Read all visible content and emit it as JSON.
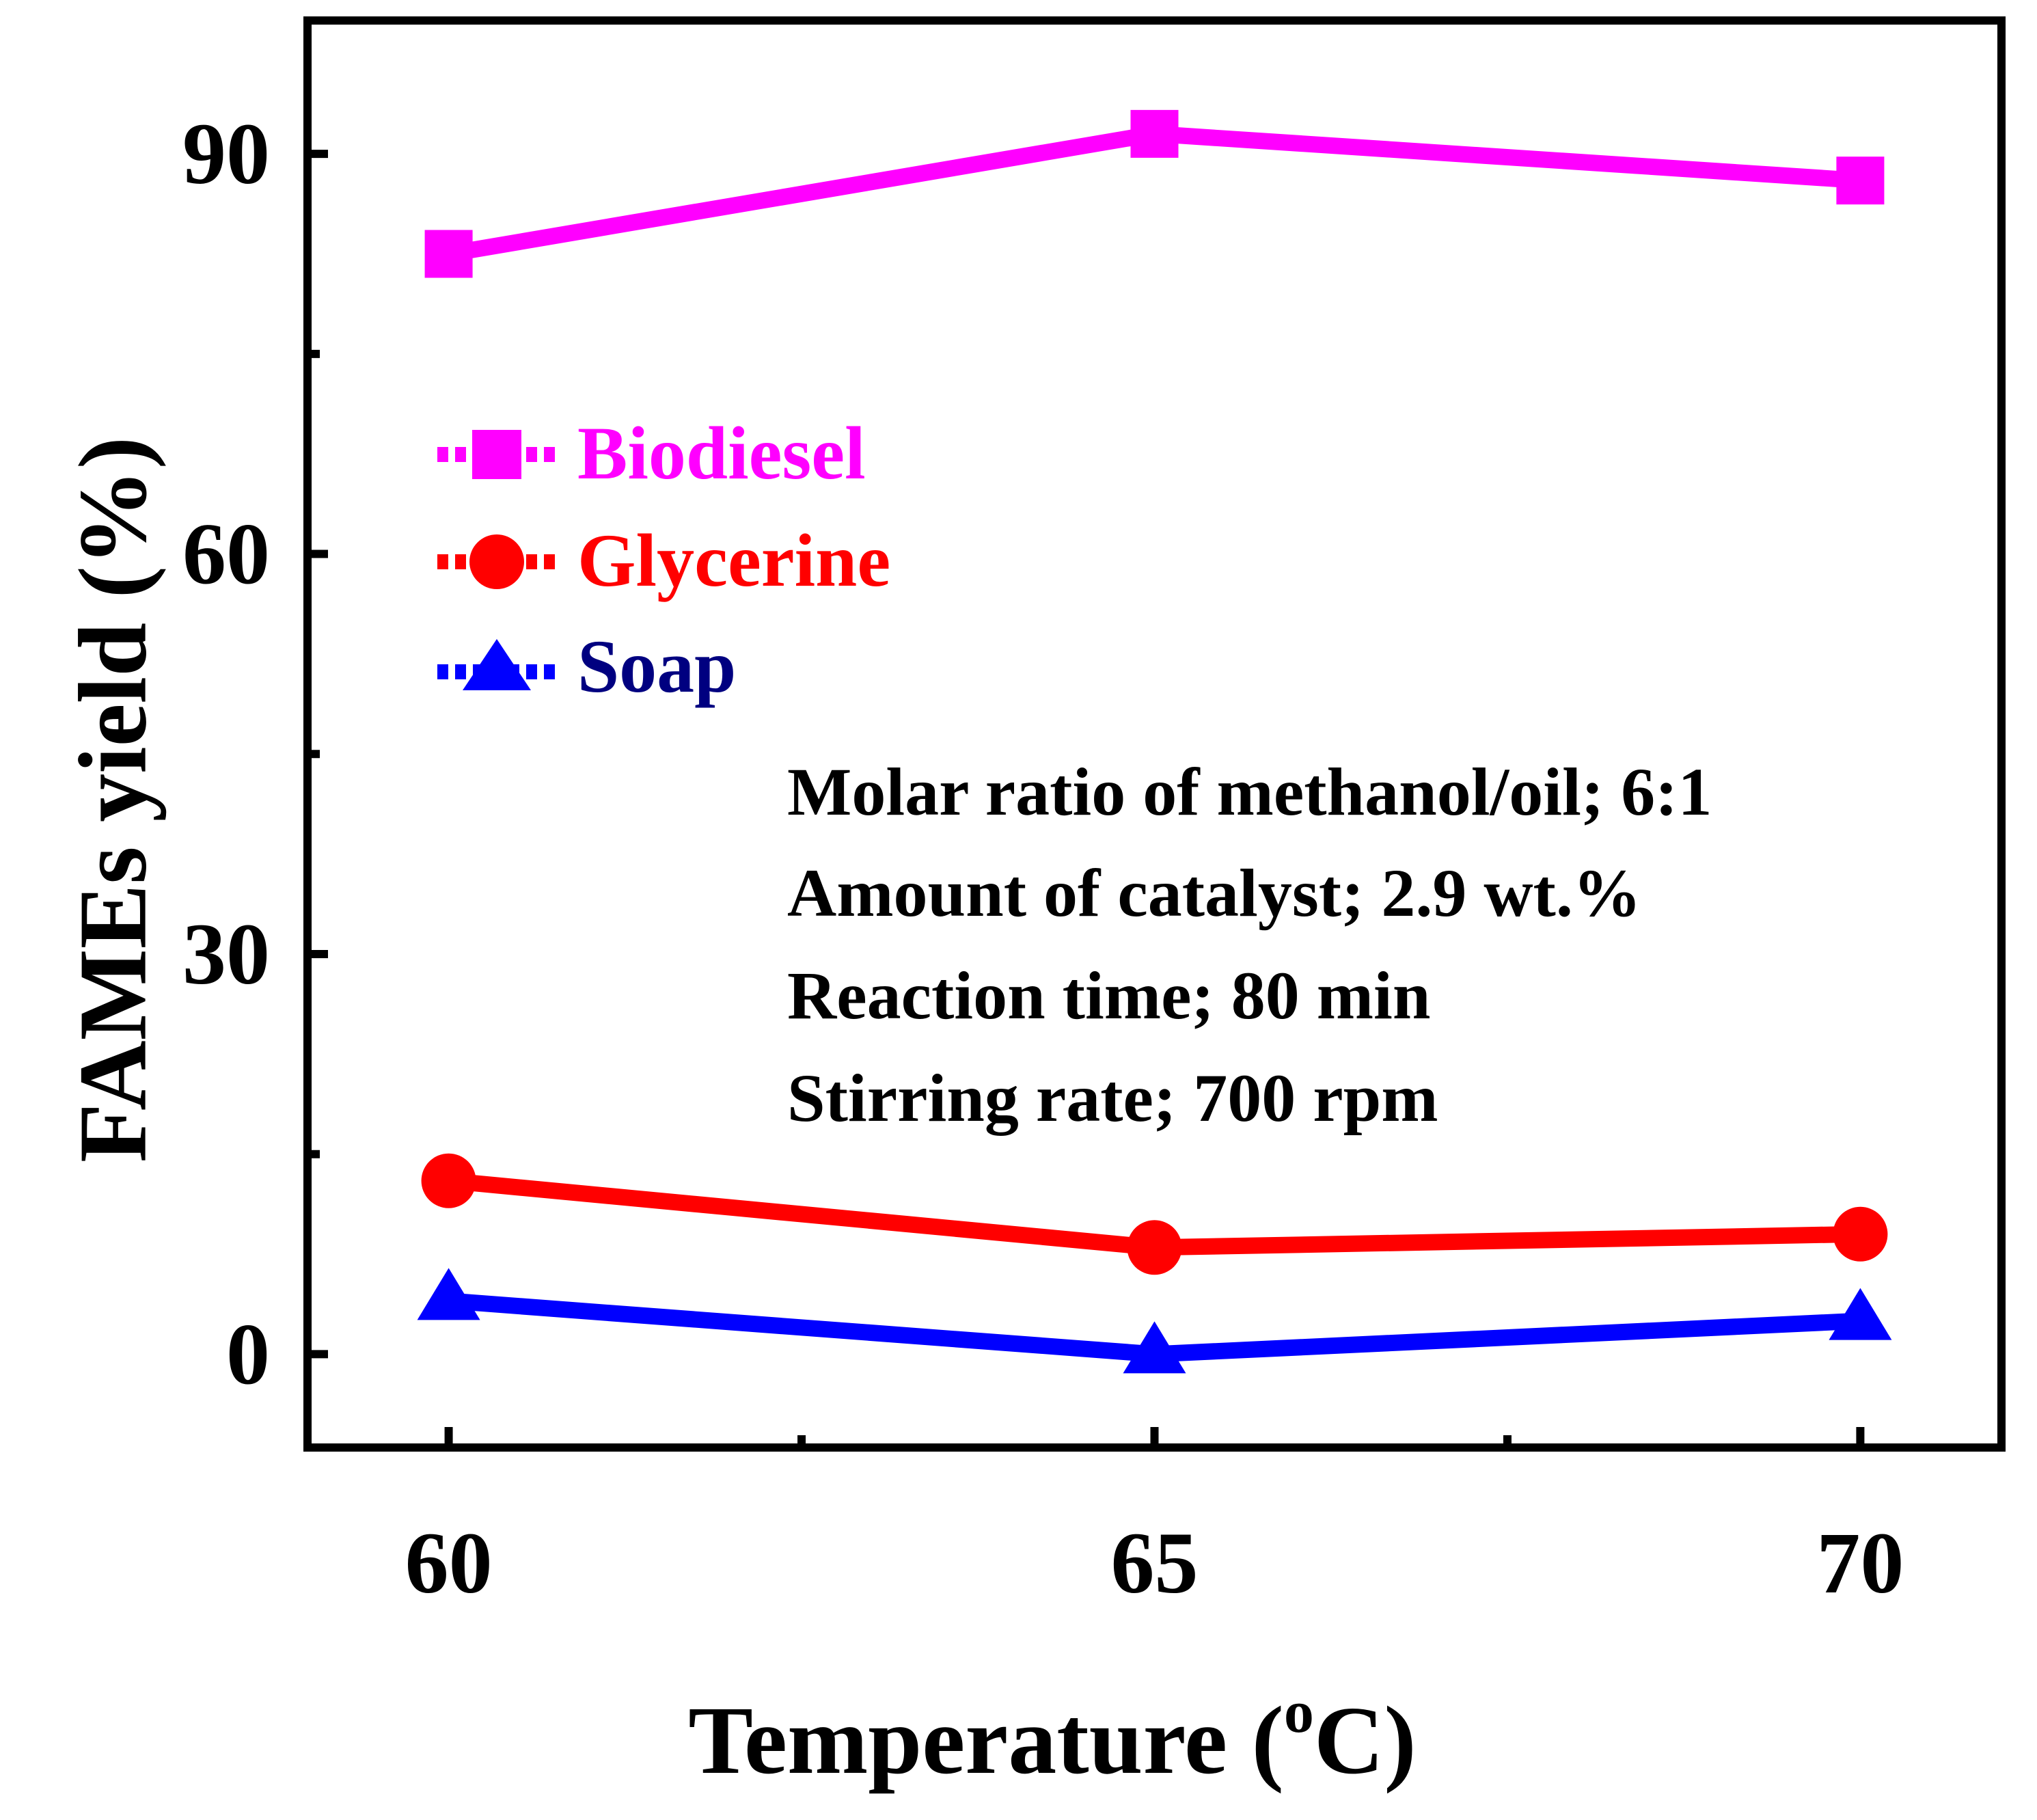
{
  "chart_data": {
    "type": "line",
    "title": "",
    "xlabel": "Temperature (",
    "xlabel_sup": "o",
    "xlabel_suffix": "C)",
    "ylabel": "FAMEs yield (%)",
    "x": [
      60,
      65,
      70
    ],
    "xlim": [
      59,
      71
    ],
    "ylim": [
      -7,
      100
    ],
    "xticks": [
      60,
      65,
      70
    ],
    "xtick_labels": [
      "60",
      "65",
      "70"
    ],
    "xminor": [
      62.5,
      67.5
    ],
    "yticks": [
      0,
      30,
      60,
      90
    ],
    "ytick_labels": [
      "0",
      "30",
      "60",
      "90"
    ],
    "yminor": [
      15,
      45,
      75
    ],
    "grid": false,
    "legend_position": "upper-left",
    "series": [
      {
        "name": "Biodiesel",
        "marker": "square",
        "color": "#ff00ff",
        "text_color": "#ff00ff",
        "values": [
          82.5,
          91.5,
          88.0
        ]
      },
      {
        "name": "Glycerine",
        "marker": "circle",
        "color": "#ff0000",
        "text_color": "#ff0000",
        "values": [
          13.0,
          8.0,
          9.0
        ]
      },
      {
        "name": "Soap",
        "marker": "triangle",
        "color": "#0000ff",
        "text_color": "#000080",
        "values": [
          4.0,
          0.0,
          2.5
        ]
      }
    ],
    "annotations": [
      "Molar ratio of methanol/oil; 6:1",
      "Amount of catalyst; 2.9 wt.%",
      "Reaction time; 80 min",
      "Stirring rate; 700 rpm"
    ]
  }
}
